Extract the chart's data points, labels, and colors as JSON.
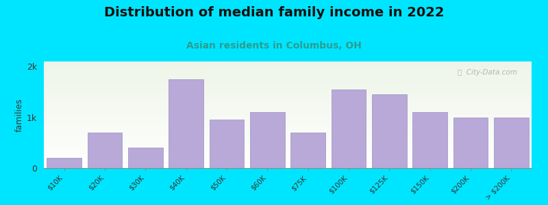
{
  "title": "Distribution of median family income in 2022",
  "subtitle": "Asian residents in Columbus, OH",
  "categories": [
    "$10K",
    "$20K",
    "$30K",
    "$40K",
    "$50K",
    "$60K",
    "$75K",
    "$100K",
    "$125K",
    "$150K",
    "$200K",
    "> $200K"
  ],
  "values": [
    200,
    700,
    400,
    1750,
    950,
    1100,
    700,
    1550,
    1450,
    1100,
    1000,
    1000
  ],
  "bar_color": "#b8a9d9",
  "bar_edge_color": "#9b8fc0",
  "bg_outer": "#00e5ff",
  "bg_plot_top": "#eef5e8",
  "bg_plot_bottom": "#ffffff",
  "title_fontsize": 14,
  "subtitle_fontsize": 10,
  "subtitle_color": "#2a9d8f",
  "ylabel": "families",
  "ylabel_fontsize": 9,
  "ytick_labels": [
    "0",
    "1k",
    "2k"
  ],
  "ytick_values": [
    0,
    1000,
    2000
  ],
  "ylim": [
    0,
    2100
  ],
  "watermark_text": "ⓘ  City-Data.com",
  "watermark_color": "#aaaaaa"
}
